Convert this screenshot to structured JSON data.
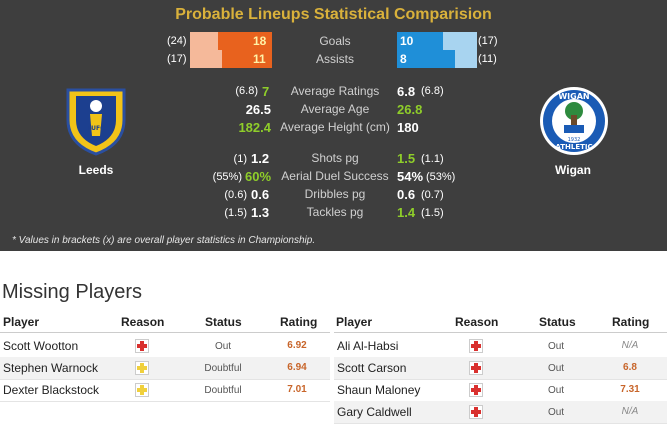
{
  "comparison": {
    "title": "Probable Lineups Statistical Comparision",
    "bar_stats": [
      {
        "label": "Goals",
        "home_avg": "(24)",
        "home_val": "18",
        "away_val": "10",
        "away_avg": "(17)"
      },
      {
        "label": "Assists",
        "home_avg": "(17)",
        "home_val": "11",
        "away_val": "8",
        "away_avg": "(11)"
      }
    ],
    "general_stats": [
      {
        "label": "Average Ratings",
        "home_avg": "(6.8)",
        "home_val": "7",
        "home_hl": true,
        "away_val": "6.8",
        "away_avg": "(6.8)",
        "away_hl": false
      },
      {
        "label": "Average Age",
        "home_avg": "",
        "home_val": "26.5",
        "home_hl": false,
        "away_val": "26.8",
        "away_avg": "",
        "away_hl": true
      },
      {
        "label": "Average Height (cm)",
        "home_avg": "",
        "home_val": "182.4",
        "home_hl": true,
        "away_val": "180",
        "away_avg": "",
        "away_hl": false
      }
    ],
    "match_stats": [
      {
        "label": "Shots pg",
        "home_avg": "(1)",
        "home_val": "1.2",
        "home_hl": false,
        "away_val": "1.5",
        "away_avg": "(1.1)",
        "away_hl": true
      },
      {
        "label": "Aerial Duel Success",
        "home_avg": "(55%)",
        "home_val": "60%",
        "home_hl": true,
        "away_val": "54%",
        "away_avg": "(53%)",
        "away_hl": false
      },
      {
        "label": "Dribbles pg",
        "home_avg": "(0.6)",
        "home_val": "0.6",
        "home_hl": false,
        "away_val": "0.6",
        "away_avg": "(0.7)",
        "away_hl": false
      },
      {
        "label": "Tackles pg",
        "home_avg": "(1.5)",
        "home_val": "1.3",
        "home_hl": false,
        "away_val": "1.4",
        "away_avg": "(1.5)",
        "away_hl": true
      }
    ],
    "home_team": "Leeds",
    "away_team": "Wigan",
    "home_crest_text": "LUFC",
    "away_crest_text_top": "WIGAN",
    "away_crest_text_bottom": "ATHLETIC",
    "away_crest_year": "1932",
    "note": "* Values in brackets (x) are overall player statistics in Championship.",
    "colors": {
      "accent": "#d9b13b",
      "home_bar": "#e8621e",
      "home_bar_light": "#f5b99a",
      "away_bar": "#1f8fd8",
      "away_bar_light": "#a8d4f0",
      "highlight": "#8fce2a"
    }
  },
  "missing": {
    "title": "Missing Players",
    "headers": {
      "player": "Player",
      "reason": "Reason",
      "status": "Status",
      "rating": "Rating"
    },
    "home": [
      {
        "player": "Scott Wootton",
        "reason": "injury",
        "status": "Out",
        "rating": "6.92"
      },
      {
        "player": "Stephen Warnock",
        "reason": "doubtful",
        "status": "Doubtful",
        "rating": "6.94"
      },
      {
        "player": "Dexter Blackstock",
        "reason": "doubtful",
        "status": "Doubtful",
        "rating": "7.01"
      }
    ],
    "away": [
      {
        "player": "Ali Al-Habsi",
        "reason": "injury",
        "status": "Out",
        "rating": "N/A"
      },
      {
        "player": "Scott Carson",
        "reason": "injury",
        "status": "Out",
        "rating": "6.8"
      },
      {
        "player": "Shaun Maloney",
        "reason": "injury",
        "status": "Out",
        "rating": "7.31"
      },
      {
        "player": "Gary Caldwell",
        "reason": "injury",
        "status": "Out",
        "rating": "N/A"
      }
    ]
  }
}
